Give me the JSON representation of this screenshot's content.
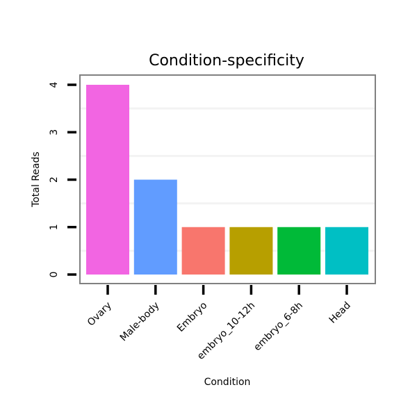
{
  "chart_data": {
    "type": "bar",
    "title": "Condition-specificity",
    "xlabel": "Condition",
    "ylabel": "Total Reads",
    "categories": [
      "Ovary",
      "Male-body",
      "Embryo",
      "embryo_10-12h",
      "embryo_6-8h",
      "Head"
    ],
    "values": [
      4,
      2,
      1,
      1,
      1,
      1
    ],
    "colors": [
      "#F265E2",
      "#619CFF",
      "#F8766D",
      "#B79F00",
      "#00BA38",
      "#00BFC4"
    ],
    "yticks": [
      0,
      1,
      2,
      3,
      4
    ],
    "ylim": [
      0,
      4
    ],
    "grid": true,
    "legend": "none"
  }
}
